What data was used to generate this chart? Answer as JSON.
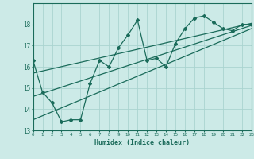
{
  "xlabel": "Humidex (Indice chaleur)",
  "ylabel": "",
  "bg_color": "#cceae7",
  "grid_color": "#aad4d0",
  "line_color": "#1a6b5a",
  "xmin": 0,
  "xmax": 23,
  "ymin": 13,
  "ymax": 19,
  "zigzag_x": [
    0,
    1,
    2,
    3,
    4,
    5,
    6,
    7,
    8,
    9,
    10,
    11,
    12,
    13,
    14,
    15,
    16,
    17,
    18,
    19,
    20,
    21,
    22,
    23
  ],
  "zigzag_y": [
    16.3,
    14.8,
    14.3,
    13.4,
    13.5,
    13.5,
    15.2,
    16.3,
    16.0,
    16.9,
    17.5,
    18.2,
    16.3,
    16.4,
    16.0,
    17.1,
    17.8,
    18.3,
    18.4,
    18.1,
    17.8,
    17.7,
    18.0,
    18.0
  ],
  "line1_x": [
    0,
    23
  ],
  "line1_y": [
    15.7,
    18.05
  ],
  "line2_x": [
    0,
    23
  ],
  "line2_y": [
    13.5,
    17.8
  ],
  "line3_x": [
    0,
    23
  ],
  "line3_y": [
    14.6,
    17.95
  ]
}
